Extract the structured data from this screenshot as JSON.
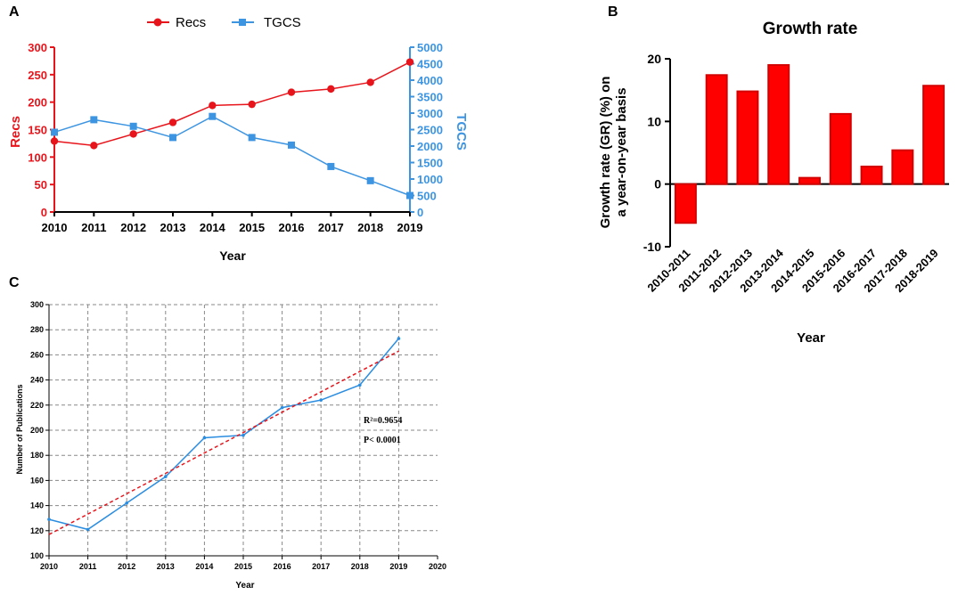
{
  "panels": {
    "a": "A",
    "b": "B",
    "c": "C"
  },
  "colors": {
    "recs": "#e8141b",
    "tgcs": "#3d95e2",
    "bar_fill": "#ff0000",
    "bar_stroke": "#d40000",
    "fit": "#e8141b",
    "pubs": "#2b8de0",
    "grid": "#888888"
  },
  "chart_data": [
    {
      "id": "A",
      "type": "line",
      "title": "",
      "xlabel": "Year",
      "ylabel_left": "Recs",
      "ylabel_right": "TGCS",
      "x": [
        2010,
        2011,
        2012,
        2013,
        2014,
        2015,
        2016,
        2017,
        2018,
        2019
      ],
      "x_tick_labels": [
        "2010",
        "2011",
        "2012",
        "2013",
        "2014",
        "2015",
        "2016",
        "2017",
        "2018",
        "2019"
      ],
      "ylim_left": [
        0,
        300
      ],
      "yticks_left": [
        "0",
        "50",
        "100",
        "150",
        "200",
        "250",
        "300"
      ],
      "ylim_right": [
        0,
        5000
      ],
      "yticks_right": [
        "0",
        "500",
        "1000",
        "1500",
        "2000",
        "2500",
        "3000",
        "3500",
        "4000",
        "4500",
        "5000"
      ],
      "legend": [
        "Recs",
        "TGCS"
      ],
      "legend_position": "top",
      "series": [
        {
          "name": "Recs",
          "axis": "left",
          "marker": "circle",
          "values": [
            129,
            121,
            142,
            163,
            194,
            196,
            218,
            224,
            236,
            273
          ]
        },
        {
          "name": "TGCS",
          "axis": "right",
          "marker": "square",
          "values": [
            2420,
            2800,
            2600,
            2260,
            2900,
            2260,
            2030,
            1380,
            950,
            500
          ]
        }
      ]
    },
    {
      "id": "B",
      "type": "bar",
      "title": "Growth rate",
      "xlabel": "Year",
      "ylabel": "Growth rate (GR) (%) on a year-on-year basis",
      "ylabel_lines": [
        "Growth rate (GR) (%) on",
        "a year-on-year basis"
      ],
      "categories": [
        "2010-2011",
        "2011-2012",
        "2012-2013",
        "2013-2014",
        "2014-2015",
        "2015-2016",
        "2016-2017",
        "2017-2018",
        "2018-2019"
      ],
      "values": [
        -6.2,
        17.4,
        14.8,
        19.0,
        1.0,
        11.2,
        2.8,
        5.4,
        15.7
      ],
      "ylim": [
        -10,
        20
      ],
      "yticks": [
        "-10",
        "0",
        "10",
        "20"
      ]
    },
    {
      "id": "C",
      "type": "line",
      "title": "",
      "xlabel": "Year",
      "ylabel": "Number of Publications",
      "x_tick_labels": [
        "2010",
        "2011",
        "2012",
        "2013",
        "2014",
        "2015",
        "2016",
        "2017",
        "2018",
        "2019",
        "2020"
      ],
      "xlim": [
        2010,
        2020
      ],
      "ylim": [
        100,
        300
      ],
      "yticks": [
        "100",
        "120",
        "140",
        "160",
        "180",
        "200",
        "220",
        "240",
        "260",
        "280",
        "300"
      ],
      "grid": true,
      "series": [
        {
          "name": "Publications",
          "x": [
            2010,
            2011,
            2012,
            2013,
            2014,
            2015,
            2016,
            2017,
            2018,
            2019
          ],
          "values": [
            129,
            121,
            142,
            163,
            194,
            196,
            218,
            224,
            236,
            273
          ]
        },
        {
          "name": "Linear fit",
          "style": "dashed",
          "x": [
            2010,
            2019
          ],
          "values": [
            117,
            263
          ]
        }
      ],
      "annotations": [
        "R²=0.9654",
        "P< 0.0001"
      ]
    }
  ]
}
